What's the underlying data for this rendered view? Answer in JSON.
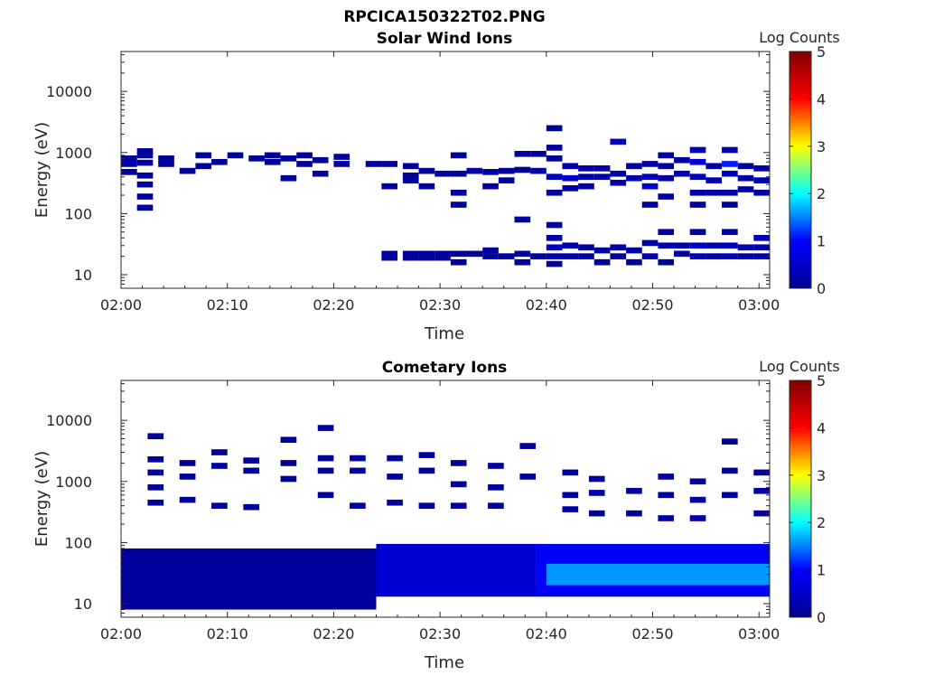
{
  "figure_title": "RPCICA150322T02.PNG",
  "colormap": [
    "#00008f",
    "#0000ff",
    "#00ffff",
    "#ffff00",
    "#ff0000",
    "#800000"
  ],
  "chart_data": [
    {
      "type": "heatmap",
      "title": "Solar Wind Ions",
      "xlabel": "Time",
      "ylabel": "Energy (eV)",
      "xticks": [
        "02:00",
        "02:10",
        "02:20",
        "02:30",
        "02:40",
        "02:50",
        "03:00"
      ],
      "xlim_minutes": [
        0,
        61
      ],
      "yscale": "log",
      "ylim": [
        6,
        45000
      ],
      "yticks": [
        10,
        100,
        1000,
        10000
      ],
      "ytick_labels": [
        "10",
        "100",
        "1000",
        "10000"
      ],
      "colorbar": {
        "label": "Log Counts",
        "range": [
          0,
          5
        ],
        "ticks": [
          "0",
          "1",
          "2",
          "3",
          "4",
          "5"
        ]
      },
      "cells": [
        {
          "t": 0.0,
          "e": 800,
          "v": 0.1
        },
        {
          "t": 0.0,
          "e": 650,
          "v": 0.2
        },
        {
          "t": 0.0,
          "e": 480,
          "v": 0.1
        },
        {
          "t": 1.5,
          "e": 1050,
          "v": 0.1
        },
        {
          "t": 1.5,
          "e": 900,
          "v": 0.1
        },
        {
          "t": 1.5,
          "e": 680,
          "v": 0.1
        },
        {
          "t": 1.5,
          "e": 420,
          "v": 0.1
        },
        {
          "t": 1.5,
          "e": 300,
          "v": 0.1
        },
        {
          "t": 1.5,
          "e": 190,
          "v": 0.1
        },
        {
          "t": 1.5,
          "e": 125,
          "v": 0.1
        },
        {
          "t": 3.5,
          "e": 800,
          "v": 0.1
        },
        {
          "t": 3.5,
          "e": 650,
          "v": 0.1
        },
        {
          "t": 5.5,
          "e": 500,
          "v": 0.1
        },
        {
          "t": 7.0,
          "e": 900,
          "v": 0.1
        },
        {
          "t": 7.0,
          "e": 600,
          "v": 0.1
        },
        {
          "t": 8.5,
          "e": 700,
          "v": 0.1
        },
        {
          "t": 10.0,
          "e": 900,
          "v": 0.1
        },
        {
          "t": 12.0,
          "e": 800,
          "v": 0.1
        },
        {
          "t": 13.5,
          "e": 900,
          "v": 0.1
        },
        {
          "t": 13.5,
          "e": 700,
          "v": 0.1
        },
        {
          "t": 15.0,
          "e": 800,
          "v": 0.1
        },
        {
          "t": 15.0,
          "e": 380,
          "v": 0.1
        },
        {
          "t": 16.5,
          "e": 900,
          "v": 0.1
        },
        {
          "t": 16.5,
          "e": 650,
          "v": 0.1
        },
        {
          "t": 18.0,
          "e": 750,
          "v": 0.1
        },
        {
          "t": 18.0,
          "e": 450,
          "v": 0.1
        },
        {
          "t": 20.0,
          "e": 850,
          "v": 0.1
        },
        {
          "t": 20.0,
          "e": 650,
          "v": 0.1
        },
        {
          "t": 23.0,
          "e": 650,
          "v": 0.1
        },
        {
          "t": 24.5,
          "e": 650,
          "v": 0.1
        },
        {
          "t": 24.5,
          "e": 280,
          "v": 0.1
        },
        {
          "t": 24.5,
          "e": 22,
          "v": 0.1
        },
        {
          "t": 24.5,
          "e": 19,
          "v": 0.1
        },
        {
          "t": 26.5,
          "e": 600,
          "v": 0.1
        },
        {
          "t": 26.5,
          "e": 420,
          "v": 0.1
        },
        {
          "t": 26.5,
          "e": 350,
          "v": 0.1
        },
        {
          "t": 26.5,
          "e": 22,
          "v": 0.1
        },
        {
          "t": 26.5,
          "e": 19,
          "v": 0.1
        },
        {
          "t": 28.0,
          "e": 500,
          "v": 0.1
        },
        {
          "t": 28.0,
          "e": 280,
          "v": 0.1
        },
        {
          "t": 28.0,
          "e": 22,
          "v": 0.1
        },
        {
          "t": 28.0,
          "e": 19,
          "v": 0.1
        },
        {
          "t": 29.5,
          "e": 450,
          "v": 0.2
        },
        {
          "t": 29.5,
          "e": 22,
          "v": 0.1
        },
        {
          "t": 29.5,
          "e": 19,
          "v": 0.1
        },
        {
          "t": 31.0,
          "e": 900,
          "v": 0.1
        },
        {
          "t": 31.0,
          "e": 450,
          "v": 0.2
        },
        {
          "t": 31.0,
          "e": 220,
          "v": 0.1
        },
        {
          "t": 31.0,
          "e": 140,
          "v": 0.1
        },
        {
          "t": 31.0,
          "e": 22,
          "v": 0.1
        },
        {
          "t": 31.0,
          "e": 16,
          "v": 0.1
        },
        {
          "t": 32.5,
          "e": 500,
          "v": 0.2
        },
        {
          "t": 32.5,
          "e": 22,
          "v": 0.1
        },
        {
          "t": 34.0,
          "e": 480,
          "v": 0.2
        },
        {
          "t": 34.0,
          "e": 280,
          "v": 0.1
        },
        {
          "t": 34.0,
          "e": 25,
          "v": 0.1
        },
        {
          "t": 34.0,
          "e": 20,
          "v": 0.1
        },
        {
          "t": 35.5,
          "e": 500,
          "v": 0.1
        },
        {
          "t": 35.5,
          "e": 350,
          "v": 0.1
        },
        {
          "t": 35.5,
          "e": 20,
          "v": 0.1
        },
        {
          "t": 37.0,
          "e": 950,
          "v": 0.1
        },
        {
          "t": 37.0,
          "e": 520,
          "v": 0.1
        },
        {
          "t": 37.0,
          "e": 80,
          "v": 0.1
        },
        {
          "t": 37.0,
          "e": 22,
          "v": 0.1
        },
        {
          "t": 37.0,
          "e": 16,
          "v": 0.1
        },
        {
          "t": 38.5,
          "e": 950,
          "v": 0.1
        },
        {
          "t": 38.5,
          "e": 500,
          "v": 0.2
        },
        {
          "t": 38.5,
          "e": 20,
          "v": 0.1
        },
        {
          "t": 40.0,
          "e": 2500,
          "v": 0.1
        },
        {
          "t": 40.0,
          "e": 1200,
          "v": 0.1
        },
        {
          "t": 40.0,
          "e": 800,
          "v": 0.1
        },
        {
          "t": 40.0,
          "e": 400,
          "v": 0.4
        },
        {
          "t": 40.0,
          "e": 220,
          "v": 0.2
        },
        {
          "t": 40.0,
          "e": 65,
          "v": 0.1
        },
        {
          "t": 40.0,
          "e": 40,
          "v": 0.2
        },
        {
          "t": 40.0,
          "e": 28,
          "v": 0.5
        },
        {
          "t": 40.0,
          "e": 20,
          "v": 0.2
        },
        {
          "t": 40.0,
          "e": 15,
          "v": 0.1
        },
        {
          "t": 41.5,
          "e": 600,
          "v": 0.3
        },
        {
          "t": 41.5,
          "e": 380,
          "v": 0.5
        },
        {
          "t": 41.5,
          "e": 260,
          "v": 0.3
        },
        {
          "t": 41.5,
          "e": 30,
          "v": 0.3
        },
        {
          "t": 41.5,
          "e": 20,
          "v": 0.2
        },
        {
          "t": 43.0,
          "e": 550,
          "v": 0.2
        },
        {
          "t": 43.0,
          "e": 400,
          "v": 0.3
        },
        {
          "t": 43.0,
          "e": 280,
          "v": 0.2
        },
        {
          "t": 43.0,
          "e": 28,
          "v": 0.2
        },
        {
          "t": 43.0,
          "e": 20,
          "v": 0.2
        },
        {
          "t": 44.5,
          "e": 550,
          "v": 0.2
        },
        {
          "t": 44.5,
          "e": 400,
          "v": 0.2
        },
        {
          "t": 44.5,
          "e": 25,
          "v": 0.2
        },
        {
          "t": 44.5,
          "e": 16,
          "v": 0.1
        },
        {
          "t": 46.0,
          "e": 1500,
          "v": 0.4
        },
        {
          "t": 46.0,
          "e": 450,
          "v": 0.2
        },
        {
          "t": 46.0,
          "e": 320,
          "v": 0.2
        },
        {
          "t": 46.0,
          "e": 28,
          "v": 0.2
        },
        {
          "t": 46.0,
          "e": 20,
          "v": 0.1
        },
        {
          "t": 47.5,
          "e": 600,
          "v": 0.2
        },
        {
          "t": 47.5,
          "e": 380,
          "v": 0.3
        },
        {
          "t": 47.5,
          "e": 25,
          "v": 0.2
        },
        {
          "t": 47.5,
          "e": 16,
          "v": 0.1
        },
        {
          "t": 49.0,
          "e": 650,
          "v": 0.2
        },
        {
          "t": 49.0,
          "e": 400,
          "v": 0.3
        },
        {
          "t": 49.0,
          "e": 280,
          "v": 0.6
        },
        {
          "t": 49.0,
          "e": 140,
          "v": 0.2
        },
        {
          "t": 49.0,
          "e": 33,
          "v": 0.2
        },
        {
          "t": 49.0,
          "e": 20,
          "v": 0.2
        },
        {
          "t": 50.5,
          "e": 900,
          "v": 0.2
        },
        {
          "t": 50.5,
          "e": 600,
          "v": 0.2
        },
        {
          "t": 50.5,
          "e": 380,
          "v": 0.2
        },
        {
          "t": 50.5,
          "e": 190,
          "v": 0.1
        },
        {
          "t": 50.5,
          "e": 50,
          "v": 0.2
        },
        {
          "t": 50.5,
          "e": 30,
          "v": 0.3
        },
        {
          "t": 50.5,
          "e": 16,
          "v": 0.1
        },
        {
          "t": 52.0,
          "e": 750,
          "v": 0.2
        },
        {
          "t": 52.0,
          "e": 450,
          "v": 0.3
        },
        {
          "t": 52.0,
          "e": 30,
          "v": 0.3
        },
        {
          "t": 52.0,
          "e": 22,
          "v": 0.2
        },
        {
          "t": 53.5,
          "e": 1100,
          "v": 0.3
        },
        {
          "t": 53.5,
          "e": 700,
          "v": 0.7
        },
        {
          "t": 53.5,
          "e": 400,
          "v": 0.4
        },
        {
          "t": 53.5,
          "e": 220,
          "v": 0.2
        },
        {
          "t": 53.5,
          "e": 140,
          "v": 0.1
        },
        {
          "t": 53.5,
          "e": 50,
          "v": 0.2
        },
        {
          "t": 53.5,
          "e": 30,
          "v": 0.5
        },
        {
          "t": 53.5,
          "e": 20,
          "v": 0.3
        },
        {
          "t": 55.0,
          "e": 600,
          "v": 0.2
        },
        {
          "t": 55.0,
          "e": 350,
          "v": 0.3
        },
        {
          "t": 55.0,
          "e": 220,
          "v": 0.2
        },
        {
          "t": 55.0,
          "e": 30,
          "v": 0.3
        },
        {
          "t": 55.0,
          "e": 20,
          "v": 0.2
        },
        {
          "t": 56.5,
          "e": 1100,
          "v": 0.3
        },
        {
          "t": 56.5,
          "e": 650,
          "v": 1.1
        },
        {
          "t": 56.5,
          "e": 450,
          "v": 0.4
        },
        {
          "t": 56.5,
          "e": 220,
          "v": 0.2
        },
        {
          "t": 56.5,
          "e": 140,
          "v": 0.1
        },
        {
          "t": 56.5,
          "e": 50,
          "v": 0.2
        },
        {
          "t": 56.5,
          "e": 30,
          "v": 0.4
        },
        {
          "t": 56.5,
          "e": 20,
          "v": 0.3
        },
        {
          "t": 58.0,
          "e": 600,
          "v": 0.2
        },
        {
          "t": 58.0,
          "e": 380,
          "v": 0.3
        },
        {
          "t": 58.0,
          "e": 250,
          "v": 0.2
        },
        {
          "t": 58.0,
          "e": 28,
          "v": 0.3
        },
        {
          "t": 58.0,
          "e": 20,
          "v": 0.2
        },
        {
          "t": 59.5,
          "e": 550,
          "v": 0.3
        },
        {
          "t": 59.5,
          "e": 350,
          "v": 0.3
        },
        {
          "t": 59.5,
          "e": 220,
          "v": 0.2
        },
        {
          "t": 59.5,
          "e": 40,
          "v": 0.3
        },
        {
          "t": 59.5,
          "e": 28,
          "v": 0.3
        },
        {
          "t": 59.5,
          "e": 20,
          "v": 0.2
        }
      ]
    },
    {
      "type": "heatmap",
      "title": "Cometary Ions",
      "xlabel": "Time",
      "ylabel": "Energy (eV)",
      "xticks": [
        "02:00",
        "02:10",
        "02:20",
        "02:30",
        "02:40",
        "02:50",
        "03:00"
      ],
      "xlim_minutes": [
        0,
        61
      ],
      "yscale": "log",
      "ylim": [
        6,
        45000
      ],
      "yticks": [
        10,
        100,
        1000,
        10000
      ],
      "ytick_labels": [
        "10",
        "100",
        "1000",
        "10000"
      ],
      "colorbar": {
        "label": "Log Counts",
        "range": [
          0,
          5
        ],
        "ticks": [
          "0",
          "1",
          "2",
          "3",
          "4",
          "5"
        ]
      },
      "summary_bands": [
        {
          "t_start": 0,
          "t_end": 24,
          "e_low": 8,
          "e_high": 80,
          "v": 0.1
        },
        {
          "t_start": 24,
          "t_end": 39,
          "e_low": 13,
          "e_high": 95,
          "v": 0.6
        },
        {
          "t_start": 39,
          "t_end": 61,
          "e_low": 13,
          "e_high": 95,
          "v": 0.9
        },
        {
          "t_start": 40,
          "t_end": 61,
          "e_low": 20,
          "e_high": 45,
          "v": 1.6
        }
      ],
      "sparse_high_energy": [
        {
          "t": 2.5,
          "e": 5500,
          "v": 0.1
        },
        {
          "t": 2.5,
          "e": 2300,
          "v": 0.1
        },
        {
          "t": 2.5,
          "e": 1400,
          "v": 0.1
        },
        {
          "t": 2.5,
          "e": 800,
          "v": 0.1
        },
        {
          "t": 2.5,
          "e": 450,
          "v": 0.1
        },
        {
          "t": 5.5,
          "e": 2000,
          "v": 0.1
        },
        {
          "t": 5.5,
          "e": 1200,
          "v": 0.1
        },
        {
          "t": 5.5,
          "e": 500,
          "v": 0.1
        },
        {
          "t": 8.5,
          "e": 3000,
          "v": 0.1
        },
        {
          "t": 8.5,
          "e": 1800,
          "v": 0.1
        },
        {
          "t": 8.5,
          "e": 400,
          "v": 0.1
        },
        {
          "t": 11.5,
          "e": 2200,
          "v": 0.1
        },
        {
          "t": 11.5,
          "e": 1500,
          "v": 0.1
        },
        {
          "t": 11.5,
          "e": 380,
          "v": 0.1
        },
        {
          "t": 15.0,
          "e": 4800,
          "v": 0.1
        },
        {
          "t": 15.0,
          "e": 2000,
          "v": 0.1
        },
        {
          "t": 15.0,
          "e": 1100,
          "v": 0.1
        },
        {
          "t": 18.5,
          "e": 7500,
          "v": 0.1
        },
        {
          "t": 18.5,
          "e": 2400,
          "v": 0.1
        },
        {
          "t": 18.5,
          "e": 1500,
          "v": 0.1
        },
        {
          "t": 18.5,
          "e": 600,
          "v": 0.1
        },
        {
          "t": 21.5,
          "e": 2400,
          "v": 0.1
        },
        {
          "t": 21.5,
          "e": 1500,
          "v": 0.1
        },
        {
          "t": 21.5,
          "e": 400,
          "v": 0.1
        },
        {
          "t": 25.0,
          "e": 2400,
          "v": 0.1
        },
        {
          "t": 25.0,
          "e": 1200,
          "v": 0.1
        },
        {
          "t": 25.0,
          "e": 450,
          "v": 0.1
        },
        {
          "t": 28.0,
          "e": 2700,
          "v": 0.1
        },
        {
          "t": 28.0,
          "e": 1500,
          "v": 0.1
        },
        {
          "t": 28.0,
          "e": 400,
          "v": 0.1
        },
        {
          "t": 31.0,
          "e": 2000,
          "v": 0.1
        },
        {
          "t": 31.0,
          "e": 900,
          "v": 0.1
        },
        {
          "t": 31.0,
          "e": 400,
          "v": 0.1
        },
        {
          "t": 34.5,
          "e": 1800,
          "v": 0.1
        },
        {
          "t": 34.5,
          "e": 800,
          "v": 0.1
        },
        {
          "t": 34.5,
          "e": 400,
          "v": 0.1
        },
        {
          "t": 37.5,
          "e": 3800,
          "v": 0.1
        },
        {
          "t": 37.5,
          "e": 1200,
          "v": 0.1
        },
        {
          "t": 41.5,
          "e": 1400,
          "v": 0.1
        },
        {
          "t": 41.5,
          "e": 600,
          "v": 0.2
        },
        {
          "t": 41.5,
          "e": 350,
          "v": 0.2
        },
        {
          "t": 44.0,
          "e": 1100,
          "v": 0.1
        },
        {
          "t": 44.0,
          "e": 650,
          "v": 0.2
        },
        {
          "t": 44.0,
          "e": 300,
          "v": 0.1
        },
        {
          "t": 47.5,
          "e": 700,
          "v": 0.1
        },
        {
          "t": 47.5,
          "e": 300,
          "v": 0.1
        },
        {
          "t": 50.5,
          "e": 1200,
          "v": 0.1
        },
        {
          "t": 50.5,
          "e": 600,
          "v": 0.2
        },
        {
          "t": 50.5,
          "e": 250,
          "v": 0.2
        },
        {
          "t": 53.5,
          "e": 1000,
          "v": 0.1
        },
        {
          "t": 53.5,
          "e": 500,
          "v": 0.2
        },
        {
          "t": 53.5,
          "e": 250,
          "v": 0.2
        },
        {
          "t": 56.5,
          "e": 4500,
          "v": 0.1
        },
        {
          "t": 56.5,
          "e": 1500,
          "v": 0.1
        },
        {
          "t": 56.5,
          "e": 600,
          "v": 0.2
        },
        {
          "t": 59.5,
          "e": 1400,
          "v": 0.1
        },
        {
          "t": 59.5,
          "e": 700,
          "v": 0.2
        },
        {
          "t": 59.5,
          "e": 300,
          "v": 0.2
        }
      ]
    }
  ]
}
